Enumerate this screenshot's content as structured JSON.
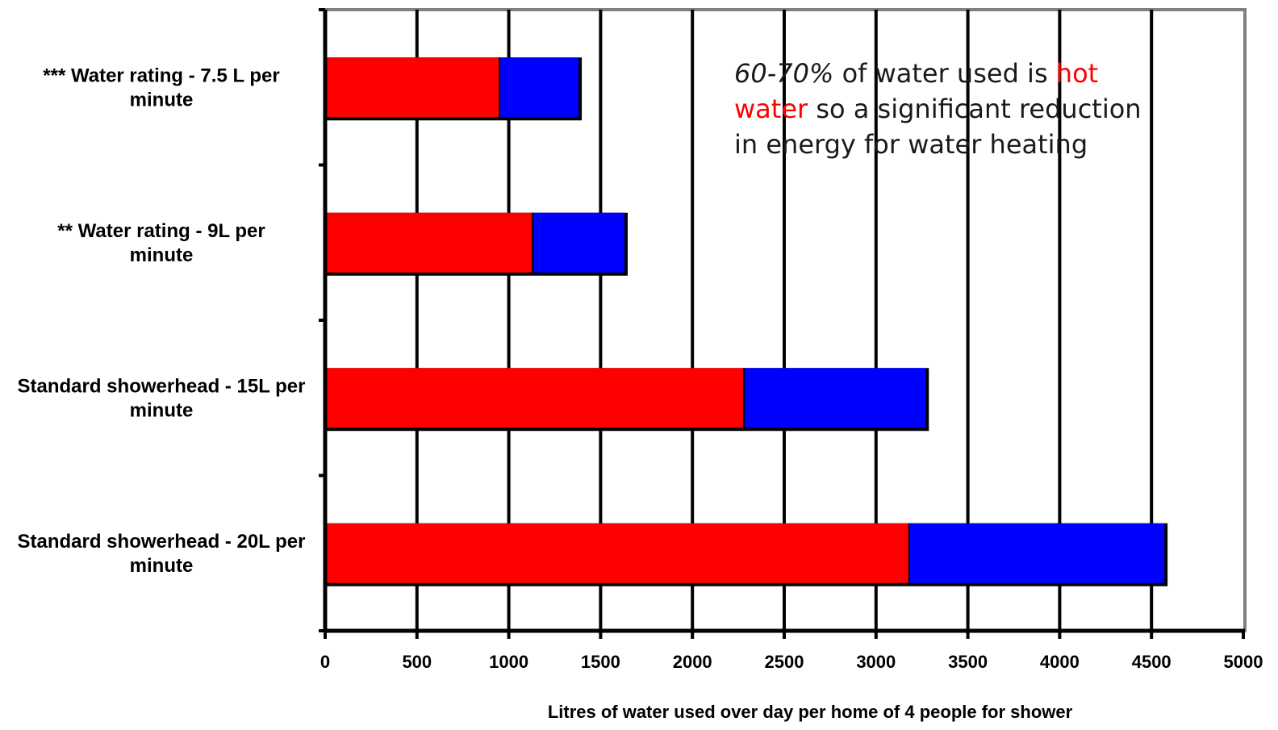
{
  "chart_data": {
    "type": "bar",
    "orientation": "horizontal",
    "stacked": true,
    "categories": [
      "*** Water rating - 7.5 L per minute",
      "** Water rating - 9L per minute",
      "Standard showerhead - 15L per minute",
      "Standard showerhead - 20L per minute"
    ],
    "series": [
      {
        "values": [
          950,
          1130,
          2280,
          3180
        ]
      },
      {
        "values": [
          430,
          500,
          990,
          1390
        ]
      }
    ],
    "series_colors": [
      "#ff0000",
      "#0000ff"
    ],
    "xlim": [
      0,
      5000
    ],
    "x_tick_labels": [
      "0",
      "500",
      "1000",
      "1500",
      "2000",
      "2500",
      "3000",
      "3500",
      "4000",
      "4500",
      "5000"
    ],
    "xlabel": "Litres of water used over day per home of 4 people for shower",
    "ylabel": "",
    "title": "",
    "grid": "vertical",
    "legend": "none",
    "annotation": {
      "italic_part": "60-70%",
      "part1": " of water used is ",
      "red_part": "hot water",
      "part2": " so a significant reduction in energy for water heating",
      "line1_a": "60-70%",
      "line1_b": " of water used is ",
      "line1_c": "hot",
      "line2_a": "water",
      "line2_b": " so a significant reduction",
      "line3": "in energy for water heating"
    }
  }
}
